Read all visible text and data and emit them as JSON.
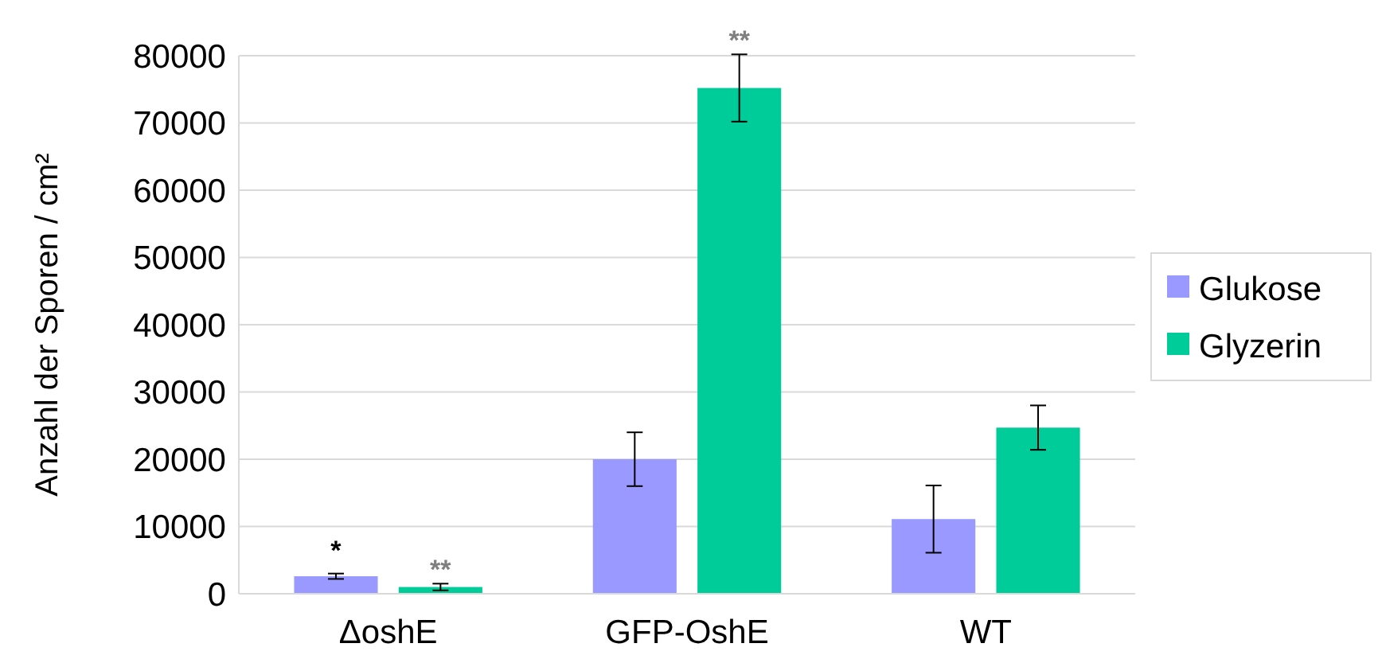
{
  "chart_data": {
    "type": "bar",
    "ylabel": "Anzahl der Sporen / cm²",
    "categories": [
      "ΔoshE",
      "GFP-OshE",
      "WT"
    ],
    "series": [
      {
        "name": "Glukose",
        "color": "#9999ff",
        "values": [
          2600,
          20000,
          11100
        ],
        "errors": [
          400,
          4000,
          5000
        ],
        "value_labels": [
          "*",
          null,
          null
        ]
      },
      {
        "name": "Glyzerin",
        "color": "#00cc99",
        "values": [
          1000,
          75200,
          24700
        ],
        "errors": [
          500,
          5000,
          3300
        ],
        "value_labels": [
          "**",
          "**",
          null
        ]
      }
    ],
    "ylim": [
      0,
      80000
    ],
    "yticks": [
      0,
      10000,
      20000,
      30000,
      40000,
      50000,
      60000,
      70000,
      80000
    ],
    "grid": "y",
    "legend": "right"
  }
}
